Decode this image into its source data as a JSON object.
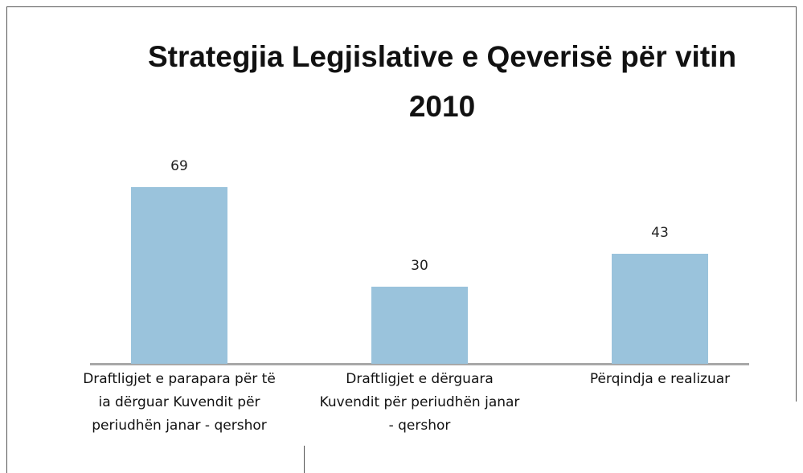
{
  "chart_data": {
    "type": "bar",
    "title": "Strategjia Legjislative e Qeverisë për vitin 2010",
    "categories": [
      "Draftligjet e parapara për të ia dërguar Kuvendit për periudhën janar - qershor",
      "Draftligjet e dërguara Kuvendit për periudhën janar - qershor",
      "Përqindja e realizuar"
    ],
    "values": [
      69,
      30,
      43
    ],
    "color": "#9ac3dc"
  }
}
